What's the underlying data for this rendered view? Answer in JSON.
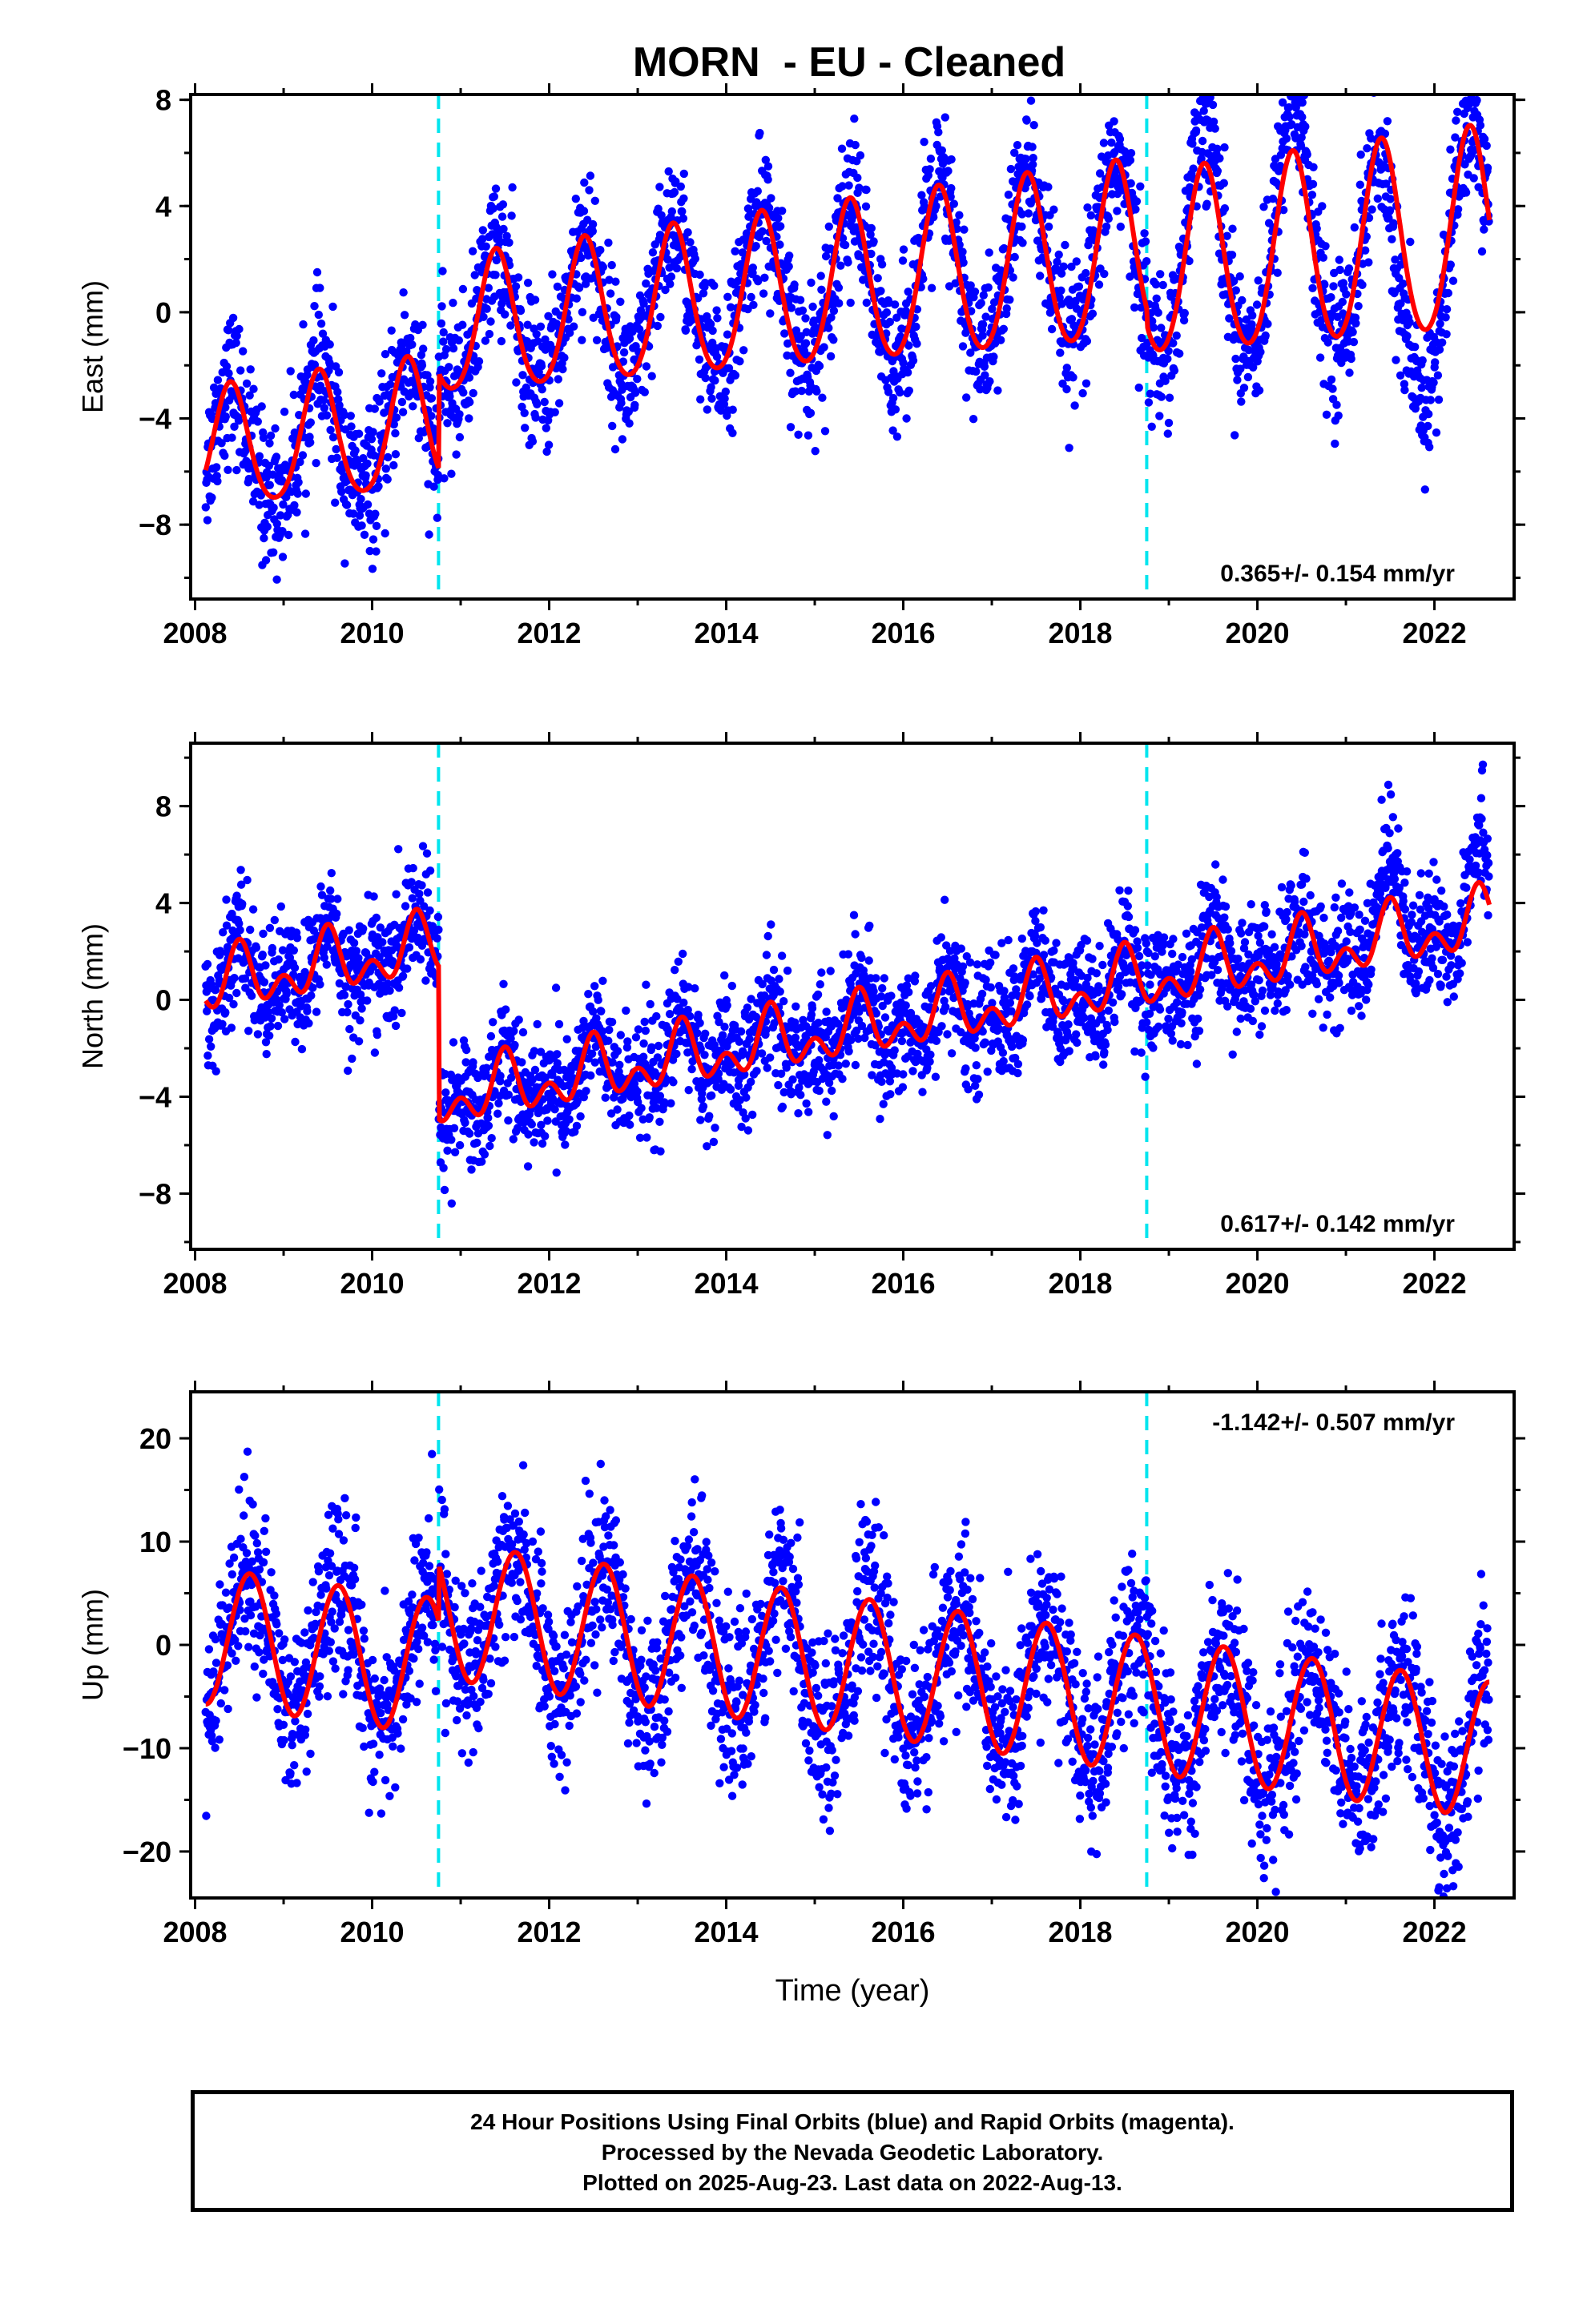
{
  "title": "MORN  - EU - Cleaned",
  "footer": {
    "line1": "24 Hour Positions Using Final Orbits (blue) and Rapid Orbits (magenta).",
    "line2": "Processed by the Nevada Geodetic Laboratory.",
    "line3": "Plotted on 2025-Aug-23. Last data on 2022-Aug-13."
  },
  "colors": {
    "data_points": "#0000ff",
    "model_fit": "#ff0000",
    "offsets": "#00e5ee",
    "axis": "#000000"
  },
  "chart_data": [
    {
      "type": "scatter",
      "panel": "east",
      "ylabel": "East (mm)",
      "xlabel": "",
      "xlim": [
        2007.95,
        2022.9
      ],
      "ylim": [
        -10.8,
        8.2
      ],
      "xticks": [
        2008,
        2010,
        2012,
        2014,
        2016,
        2018,
        2020,
        2022
      ],
      "yticks": [
        -8,
        -4,
        0,
        4,
        8
      ],
      "ytick_labels": [
        "−8",
        "−4",
        "0",
        "4",
        "8"
      ],
      "annotation": "0.365+/- 0.154 mm/yr",
      "annotation_pos": "bottom-right",
      "offsets_year": [
        2010.75,
        2018.75
      ],
      "data_range": [
        2008.12,
        2022.62
      ],
      "series": [
        {
          "name": "Final Orbits",
          "style": "points",
          "color": "#0000ff",
          "model": {
            "offset": -5.3,
            "rate": 0.365,
            "amp": 2.2,
            "peak_year_frac": 0.4,
            "semi_amp": 0.3,
            "noise": 1.35,
            "steps": [
              {
                "year": 2010.75,
                "dy": 3.6
              },
              {
                "year": 2018.75,
                "dy": -0.6
              }
            ],
            "amp_growth": 0.05,
            "extras": [
              [
                2019.05,
                2021.0,
                2.0
              ]
            ],
            "dips": [
              [
                2021.3,
                2022.2,
                -3.0
              ]
            ]
          }
        },
        {
          "name": "Model fit",
          "style": "line",
          "color": "#ff0000",
          "end": 2022.62
        }
      ]
    },
    {
      "type": "scatter",
      "panel": "north",
      "ylabel": "North (mm)",
      "xlabel": "",
      "xlim": [
        2007.95,
        2022.9
      ],
      "ylim": [
        -10.3,
        10.6
      ],
      "xticks": [
        2008,
        2010,
        2012,
        2014,
        2016,
        2018,
        2020,
        2022
      ],
      "yticks": [
        -8,
        -4,
        0,
        4,
        8
      ],
      "ytick_labels": [
        "−8",
        "−4",
        "0",
        "4",
        "8"
      ],
      "annotation": "0.617+/- 0.142 mm/yr",
      "annotation_pos": "bottom-right",
      "offsets_year": [
        2010.75,
        2018.75
      ],
      "data_range": [
        2008.12,
        2022.62
      ],
      "series": [
        {
          "name": "Final Orbits",
          "style": "points",
          "color": "#0000ff",
          "model": {
            "offset": 0.5,
            "rate": 0.617,
            "amp": 0.9,
            "peak_year_frac": 0.5,
            "semi_amp": 0.8,
            "noise": 1.25,
            "steps": [
              {
                "year": 2010.75,
                "dy": -6.3
              },
              {
                "year": 2018.75,
                "dy": 0.0
              }
            ],
            "amp_growth": 0.0,
            "extras": [
              [
                2021.3,
                2022.62,
                2.0
              ]
            ],
            "dips": []
          }
        },
        {
          "name": "Model fit",
          "style": "line",
          "color": "#ff0000",
          "end": 2022.62
        }
      ]
    },
    {
      "type": "scatter",
      "panel": "up",
      "ylabel": "Up (mm)",
      "xlabel": "Time (year)",
      "xlim": [
        2007.95,
        2022.9
      ],
      "ylim": [
        -24.5,
        24.5
      ],
      "xticks": [
        2008,
        2010,
        2012,
        2014,
        2016,
        2018,
        2020,
        2022
      ],
      "yticks": [
        -20,
        -10,
        0,
        10,
        20
      ],
      "ytick_labels": [
        "−20",
        "−10",
        "0",
        "10",
        "20"
      ],
      "annotation": "-1.142+/- 0.507 mm/yr",
      "annotation_pos": "top-right",
      "offsets_year": [
        2010.75,
        2018.75
      ],
      "data_range": [
        2008.12,
        2022.62
      ],
      "series": [
        {
          "name": "Final Orbits",
          "style": "points",
          "color": "#0000ff",
          "model": {
            "offset": 1.0,
            "rate": -1.142,
            "amp": 6.6,
            "peak_year_frac": 0.62,
            "semi_amp": 0.0,
            "noise": 4.0,
            "steps": [
              {
                "year": 2010.75,
                "dy": 5.5
              },
              {
                "year": 2018.75,
                "dy": 0.0
              }
            ],
            "amp_growth": 0.0,
            "extras": [],
            "dips": []
          }
        },
        {
          "name": "Model fit",
          "style": "line",
          "color": "#ff0000",
          "end": 2022.62
        }
      ]
    }
  ]
}
